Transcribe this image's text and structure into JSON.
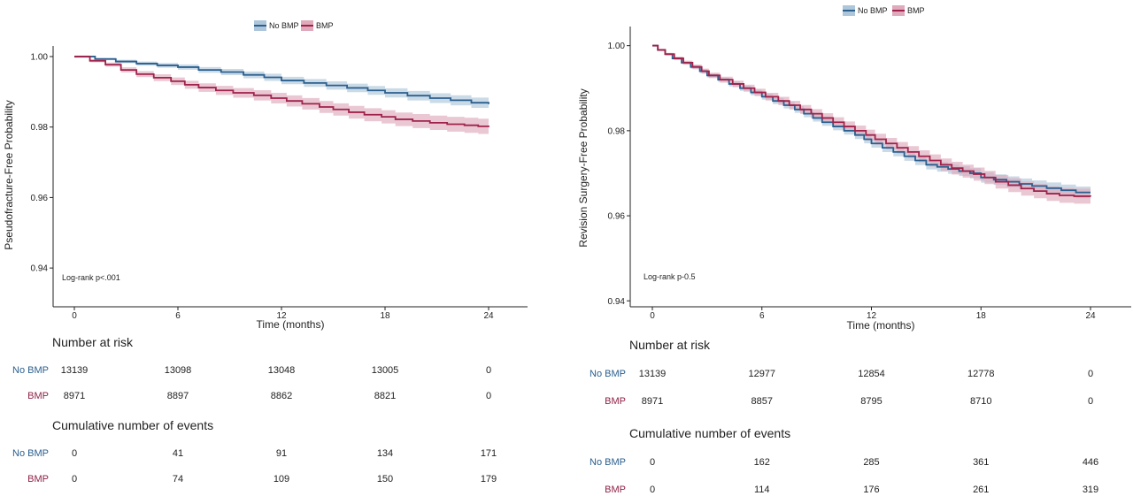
{
  "colors": {
    "no_bmp": "#2b5f8e",
    "bmp": "#a0224a",
    "no_bmp_ci": "#aec6da",
    "bmp_ci": "#dfaabb"
  },
  "chart_data": [
    {
      "type": "line",
      "subtype": "kaplan-meier",
      "legend": {
        "position": "top",
        "entries": [
          "No BMP",
          "BMP"
        ]
      },
      "xlabel": "Time (months)",
      "ylabel": "Pseudofracture-Free Probability",
      "xlim": [
        0,
        24
      ],
      "ylim": [
        0.929,
        1.003
      ],
      "x_ticks": [
        0,
        6,
        12,
        18,
        24
      ],
      "x_tick_labels": [
        "0",
        "6",
        "12",
        "18",
        "24"
      ],
      "y_ticks": [
        0.94,
        0.96,
        0.98,
        1.0
      ],
      "y_tick_labels": [
        "0.94",
        "0.96",
        "0.98",
        "1.00"
      ],
      "grid": false,
      "annotation": "Log-rank p<.001",
      "series": [
        {
          "name": "No BMP",
          "ci_halfwidth": 0.0015,
          "steps": [
            [
              0,
              1.0
            ],
            [
              1.2,
              0.9993
            ],
            [
              2.4,
              0.9986
            ],
            [
              3.6,
              0.998
            ],
            [
              4.8,
              0.9975
            ],
            [
              6.0,
              0.997
            ],
            [
              7.2,
              0.9962
            ],
            [
              8.5,
              0.9956
            ],
            [
              9.8,
              0.9948
            ],
            [
              11.0,
              0.9941
            ],
            [
              12.0,
              0.9932
            ],
            [
              13.3,
              0.9925
            ],
            [
              14.6,
              0.9918
            ],
            [
              15.8,
              0.9911
            ],
            [
              17.0,
              0.9904
            ],
            [
              18.0,
              0.9897
            ],
            [
              19.3,
              0.9889
            ],
            [
              20.6,
              0.9882
            ],
            [
              21.8,
              0.9876
            ],
            [
              23.0,
              0.9869
            ],
            [
              24.0,
              0.9865
            ]
          ]
        },
        {
          "name": "BMP",
          "ci_halfwidth": 0.0022,
          "steps": [
            [
              0,
              1.0
            ],
            [
              0.9,
              0.9988
            ],
            [
              1.8,
              0.9977
            ],
            [
              2.7,
              0.9962
            ],
            [
              3.6,
              0.995
            ],
            [
              4.6,
              0.994
            ],
            [
              5.6,
              0.993
            ],
            [
              6.4,
              0.992
            ],
            [
              7.2,
              0.9912
            ],
            [
              8.2,
              0.9904
            ],
            [
              9.2,
              0.9897
            ],
            [
              10.4,
              0.989
            ],
            [
              11.4,
              0.9882
            ],
            [
              12.3,
              0.9874
            ],
            [
              13.2,
              0.9866
            ],
            [
              14.2,
              0.9857
            ],
            [
              15.0,
              0.985
            ],
            [
              15.9,
              0.9842
            ],
            [
              16.8,
              0.9835
            ],
            [
              17.8,
              0.9829
            ],
            [
              18.6,
              0.9822
            ],
            [
              19.6,
              0.9817
            ],
            [
              20.6,
              0.9812
            ],
            [
              21.6,
              0.9808
            ],
            [
              22.6,
              0.9805
            ],
            [
              23.4,
              0.9802
            ],
            [
              24.0,
              0.98
            ]
          ]
        }
      ],
      "risk_table": {
        "title": "Number at risk",
        "times": [
          "0",
          "6",
          "12",
          "18",
          "24"
        ],
        "rows": [
          {
            "group": "No BMP",
            "values": [
              "13139",
              "13098",
              "13048",
              "13005",
              "0"
            ]
          },
          {
            "group": "BMP",
            "values": [
              "8971",
              "8897",
              "8862",
              "8821",
              "0"
            ]
          }
        ]
      },
      "events_table": {
        "title": "Cumulative number of events",
        "rows": [
          {
            "group": "No BMP",
            "values": [
              "0",
              "41",
              "91",
              "134",
              "171"
            ]
          },
          {
            "group": "BMP",
            "values": [
              "0",
              "74",
              "109",
              "150",
              "179"
            ]
          }
        ]
      }
    },
    {
      "type": "line",
      "subtype": "kaplan-meier",
      "legend": {
        "position": "top",
        "entries": [
          "No BMP",
          "BMP"
        ]
      },
      "xlabel": "Time (months)",
      "ylabel": "Revision Surgery-Free Probability",
      "xlim": [
        0,
        24
      ],
      "ylim": [
        0.9386,
        1.0045
      ],
      "x_ticks": [
        0,
        6,
        12,
        18,
        24
      ],
      "x_tick_labels": [
        "0",
        "6",
        "12",
        "18",
        "24"
      ],
      "y_ticks": [
        0.94,
        0.96,
        0.98,
        1.0
      ],
      "y_tick_labels": [
        "0.94",
        "0.96",
        "0.98",
        "1.00"
      ],
      "grid": false,
      "annotation": "Log-rank p-0.5",
      "series": [
        {
          "name": "No BMP",
          "ci_halfwidth": 0.0014,
          "steps": [
            [
              0,
              1.0
            ],
            [
              0.3,
              0.999
            ],
            [
              0.7,
              0.998
            ],
            [
              1.1,
              0.997
            ],
            [
              1.6,
              0.996
            ],
            [
              2.1,
              0.995
            ],
            [
              2.6,
              0.994
            ],
            [
              3.0,
              0.993
            ],
            [
              3.6,
              0.992
            ],
            [
              4.2,
              0.991
            ],
            [
              4.8,
              0.99
            ],
            [
              5.4,
              0.989
            ],
            [
              6.0,
              0.988
            ],
            [
              6.6,
              0.987
            ],
            [
              7.2,
              0.986
            ],
            [
              7.8,
              0.985
            ],
            [
              8.3,
              0.984
            ],
            [
              8.8,
              0.983
            ],
            [
              9.3,
              0.982
            ],
            [
              9.9,
              0.981
            ],
            [
              10.5,
              0.98
            ],
            [
              11.1,
              0.979
            ],
            [
              11.6,
              0.978
            ],
            [
              12.0,
              0.977
            ],
            [
              12.6,
              0.976
            ],
            [
              13.2,
              0.975
            ],
            [
              13.8,
              0.974
            ],
            [
              14.4,
              0.973
            ],
            [
              15.0,
              0.972
            ],
            [
              15.6,
              0.9715
            ],
            [
              16.2,
              0.971
            ],
            [
              16.8,
              0.9705
            ],
            [
              17.4,
              0.97
            ],
            [
              18.0,
              0.969
            ],
            [
              18.7,
              0.9685
            ],
            [
              19.4,
              0.968
            ],
            [
              20.1,
              0.9675
            ],
            [
              20.8,
              0.967
            ],
            [
              21.6,
              0.9665
            ],
            [
              22.4,
              0.966
            ],
            [
              23.2,
              0.9655
            ],
            [
              24.0,
              0.9655
            ]
          ]
        },
        {
          "name": "BMP",
          "ci_halfwidth": 0.0018,
          "steps": [
            [
              0,
              1.0
            ],
            [
              0.3,
              0.999
            ],
            [
              0.7,
              0.998
            ],
            [
              1.2,
              0.997
            ],
            [
              1.7,
              0.996
            ],
            [
              2.2,
              0.995
            ],
            [
              2.7,
              0.994
            ],
            [
              3.1,
              0.993
            ],
            [
              3.7,
              0.992
            ],
            [
              4.4,
              0.991
            ],
            [
              5.0,
              0.99
            ],
            [
              5.6,
              0.989
            ],
            [
              6.2,
              0.988
            ],
            [
              6.9,
              0.987
            ],
            [
              7.5,
              0.986
            ],
            [
              8.1,
              0.985
            ],
            [
              8.7,
              0.984
            ],
            [
              9.3,
              0.983
            ],
            [
              9.9,
              0.982
            ],
            [
              10.5,
              0.981
            ],
            [
              11.1,
              0.98
            ],
            [
              11.7,
              0.979
            ],
            [
              12.2,
              0.978
            ],
            [
              12.8,
              0.977
            ],
            [
              13.4,
              0.976
            ],
            [
              14.0,
              0.975
            ],
            [
              14.6,
              0.974
            ],
            [
              15.2,
              0.973
            ],
            [
              15.8,
              0.972
            ],
            [
              16.4,
              0.9712
            ],
            [
              17.0,
              0.9705
            ],
            [
              17.6,
              0.9698
            ],
            [
              18.2,
              0.969
            ],
            [
              18.8,
              0.968
            ],
            [
              19.5,
              0.9672
            ],
            [
              20.2,
              0.9664
            ],
            [
              20.9,
              0.9658
            ],
            [
              21.6,
              0.9652
            ],
            [
              22.3,
              0.9648
            ],
            [
              23.1,
              0.9646
            ],
            [
              24.0,
              0.9645
            ]
          ]
        }
      ],
      "risk_table": {
        "title": "Number at risk",
        "times": [
          "0",
          "6",
          "12",
          "18",
          "24"
        ],
        "rows": [
          {
            "group": "No BMP",
            "values": [
              "13139",
              "12977",
              "12854",
              "12778",
              "0"
            ]
          },
          {
            "group": "BMP",
            "values": [
              "8971",
              "8857",
              "8795",
              "8710",
              "0"
            ]
          }
        ]
      },
      "events_table": {
        "title": "Cumulative number of events",
        "rows": [
          {
            "group": "No BMP",
            "values": [
              "0",
              "162",
              "285",
              "361",
              "446"
            ]
          },
          {
            "group": "BMP",
            "values": [
              "0",
              "114",
              "176",
              "261",
              "319"
            ]
          }
        ]
      }
    }
  ]
}
